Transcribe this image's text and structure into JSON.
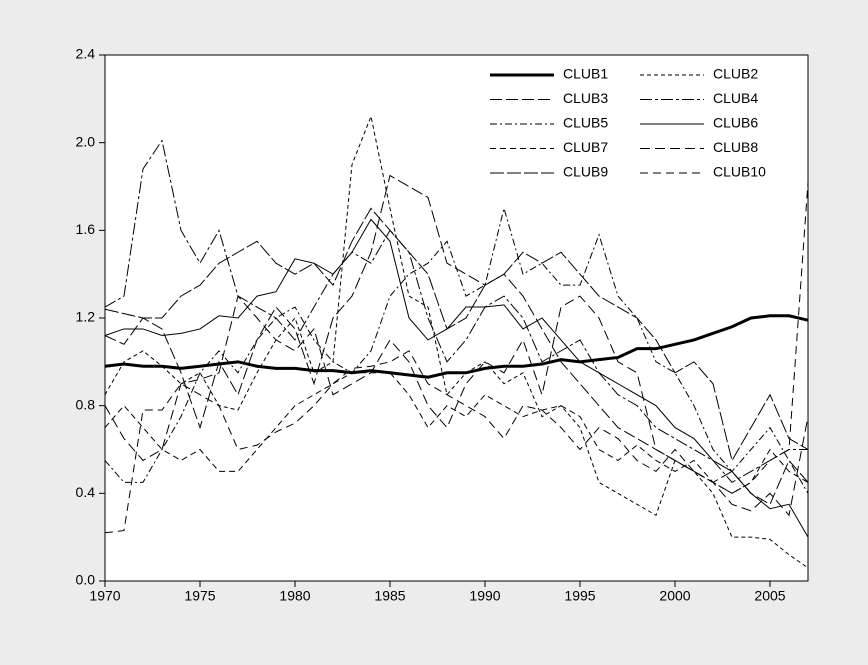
{
  "chart_data": {
    "type": "line",
    "x": [
      1970,
      1971,
      1972,
      1973,
      1974,
      1975,
      1976,
      1977,
      1978,
      1979,
      1980,
      1981,
      1982,
      1983,
      1984,
      1985,
      1986,
      1987,
      1988,
      1989,
      1990,
      1991,
      1992,
      1993,
      1994,
      1995,
      1996,
      1997,
      1998,
      1999,
      2000,
      2001,
      2002,
      2003,
      2004,
      2005,
      2006,
      2007
    ],
    "xlim": [
      1970,
      2007
    ],
    "xticks": [
      1970,
      1975,
      1980,
      1985,
      1990,
      1995,
      2000,
      2005
    ],
    "ylim": [
      0,
      2.4
    ],
    "yticks": [
      {
        "value": 0,
        "label": "0.0"
      },
      0.4,
      0.8,
      1.2,
      1.6,
      {
        "value": 2,
        "label": "2.0"
      },
      2.4
    ],
    "legend": "upper right",
    "series": [
      {
        "name": "CLUB1",
        "color": "#000000",
        "width": 3,
        "dash": "none",
        "values": [
          0.98,
          0.99,
          0.98,
          0.98,
          0.97,
          0.98,
          0.99,
          1.0,
          0.98,
          0.97,
          0.97,
          0.96,
          0.96,
          0.95,
          0.96,
          0.95,
          0.94,
          0.93,
          0.95,
          0.95,
          0.97,
          0.98,
          0.98,
          0.99,
          1.01,
          1.0,
          1.01,
          1.02,
          1.06,
          1.06,
          1.08,
          1.1,
          1.13,
          1.16,
          1.2,
          1.21,
          1.21,
          1.19
        ]
      },
      {
        "name": "CLUB2",
        "color": "#000000",
        "width": 1,
        "dash": "4 3",
        "values": [
          0.85,
          1.0,
          1.05,
          0.98,
          0.9,
          0.95,
          0.8,
          0.78,
          0.95,
          1.1,
          1.2,
          0.95,
          1.0,
          1.9,
          2.12,
          1.7,
          1.3,
          1.25,
          0.85,
          0.95,
          1.0,
          0.9,
          0.95,
          0.75,
          0.8,
          0.7,
          0.45,
          0.4,
          0.35,
          0.3,
          0.55,
          0.5,
          0.4,
          0.2,
          0.2,
          0.19,
          0.12,
          0.06
        ]
      },
      {
        "name": "CLUB3",
        "color": "#000000",
        "width": 1,
        "dash": "12 4",
        "values": [
          1.12,
          1.08,
          1.2,
          1.15,
          0.95,
          0.7,
          1.0,
          0.85,
          1.1,
          1.25,
          1.15,
          0.9,
          1.2,
          1.3,
          1.5,
          1.85,
          1.8,
          1.75,
          1.45,
          1.4,
          1.35,
          1.4,
          1.3,
          1.15,
          1.0,
          0.9,
          0.8,
          0.7,
          0.65,
          0.6,
          0.55,
          0.5,
          0.45,
          0.5,
          0.4,
          0.35,
          0.55,
          0.45
        ]
      },
      {
        "name": "CLUB4",
        "color": "#000000",
        "width": 1,
        "dash": "12 3 3 3",
        "values": [
          1.25,
          1.3,
          1.88,
          2.01,
          1.6,
          1.45,
          1.6,
          1.3,
          1.25,
          1.2,
          1.1,
          1.25,
          1.4,
          1.5,
          1.45,
          1.6,
          1.5,
          1.2,
          1.0,
          1.1,
          1.25,
          1.3,
          1.2,
          1.0,
          1.05,
          1.1,
          0.95,
          0.85,
          0.8,
          0.7,
          0.65,
          0.6,
          0.55,
          0.45,
          0.5,
          0.55,
          0.6,
          0.6
        ]
      },
      {
        "name": "CLUB5",
        "color": "#000000",
        "width": 1,
        "dash": "7 3 2 3",
        "values": [
          0.55,
          0.45,
          0.45,
          0.6,
          0.75,
          0.95,
          1.05,
          0.95,
          1.1,
          1.2,
          1.25,
          1.1,
          1.0,
          0.95,
          1.05,
          1.3,
          1.4,
          1.45,
          1.55,
          1.3,
          1.35,
          1.7,
          1.4,
          1.45,
          1.35,
          1.35,
          1.58,
          1.3,
          1.2,
          1.0,
          0.95,
          0.8,
          0.6,
          0.5,
          0.6,
          0.7,
          0.55,
          0.4
        ]
      },
      {
        "name": "CLUB6",
        "color": "#000000",
        "width": 1,
        "dash": "none",
        "values": [
          1.12,
          1.15,
          1.15,
          1.12,
          1.13,
          1.15,
          1.21,
          1.2,
          1.3,
          1.32,
          1.47,
          1.45,
          1.4,
          1.5,
          1.65,
          1.55,
          1.2,
          1.1,
          1.15,
          1.25,
          1.25,
          1.26,
          1.15,
          1.2,
          1.1,
          1.0,
          0.95,
          0.9,
          0.85,
          0.8,
          0.7,
          0.65,
          0.55,
          0.5,
          0.4,
          0.33,
          0.35,
          0.2
        ]
      },
      {
        "name": "CLUB7",
        "color": "#000000",
        "width": 1,
        "dash": "6 4",
        "values": [
          0.7,
          0.8,
          0.7,
          0.6,
          0.55,
          0.6,
          0.5,
          0.5,
          0.6,
          0.7,
          0.8,
          0.85,
          0.9,
          0.95,
          0.95,
          0.95,
          0.85,
          0.7,
          0.8,
          0.75,
          0.85,
          0.8,
          0.75,
          0.78,
          0.8,
          0.75,
          0.6,
          0.55,
          0.62,
          0.55,
          0.5,
          0.55,
          0.45,
          0.4,
          0.45,
          0.6,
          0.5,
          0.45
        ]
      },
      {
        "name": "CLUB8",
        "color": "#000000",
        "width": 1,
        "dash": "10 5",
        "values": [
          0.8,
          0.65,
          0.55,
          0.6,
          0.9,
          0.92,
          0.95,
          1.3,
          1.2,
          1.1,
          1.05,
          1.15,
          0.85,
          0.9,
          0.95,
          1.1,
          1.0,
          0.8,
          0.7,
          0.9,
          1.0,
          0.95,
          1.1,
          0.85,
          1.25,
          1.3,
          1.2,
          1.0,
          0.95,
          0.6,
          0.55,
          0.5,
          0.45,
          0.35,
          0.32,
          0.4,
          0.3,
          0.75
        ]
      },
      {
        "name": "CLUB9",
        "color": "#000000",
        "width": 1,
        "dash": "14 3",
        "values": [
          1.24,
          1.22,
          1.2,
          1.2,
          1.3,
          1.35,
          1.45,
          1.5,
          1.55,
          1.45,
          1.4,
          1.45,
          1.35,
          1.55,
          1.7,
          1.6,
          1.5,
          1.4,
          1.15,
          1.2,
          1.35,
          1.4,
          1.5,
          1.45,
          1.5,
          1.4,
          1.3,
          1.25,
          1.2,
          1.1,
          0.95,
          1.0,
          0.9,
          0.55,
          0.7,
          0.85,
          0.65,
          0.6
        ]
      },
      {
        "name": "CLUB10",
        "color": "#000000",
        "width": 1,
        "dash": "8 5",
        "values": [
          0.22,
          0.23,
          0.78,
          0.78,
          0.9,
          0.85,
          0.8,
          0.6,
          0.62,
          0.68,
          0.72,
          0.8,
          0.9,
          0.97,
          0.98,
          1.0,
          1.05,
          0.9,
          0.85,
          0.8,
          0.75,
          0.65,
          0.8,
          0.78,
          0.7,
          0.6,
          0.7,
          0.65,
          0.55,
          0.5,
          0.6,
          0.5,
          0.45,
          0.4,
          0.45,
          0.55,
          0.6,
          1.82
        ]
      }
    ]
  }
}
